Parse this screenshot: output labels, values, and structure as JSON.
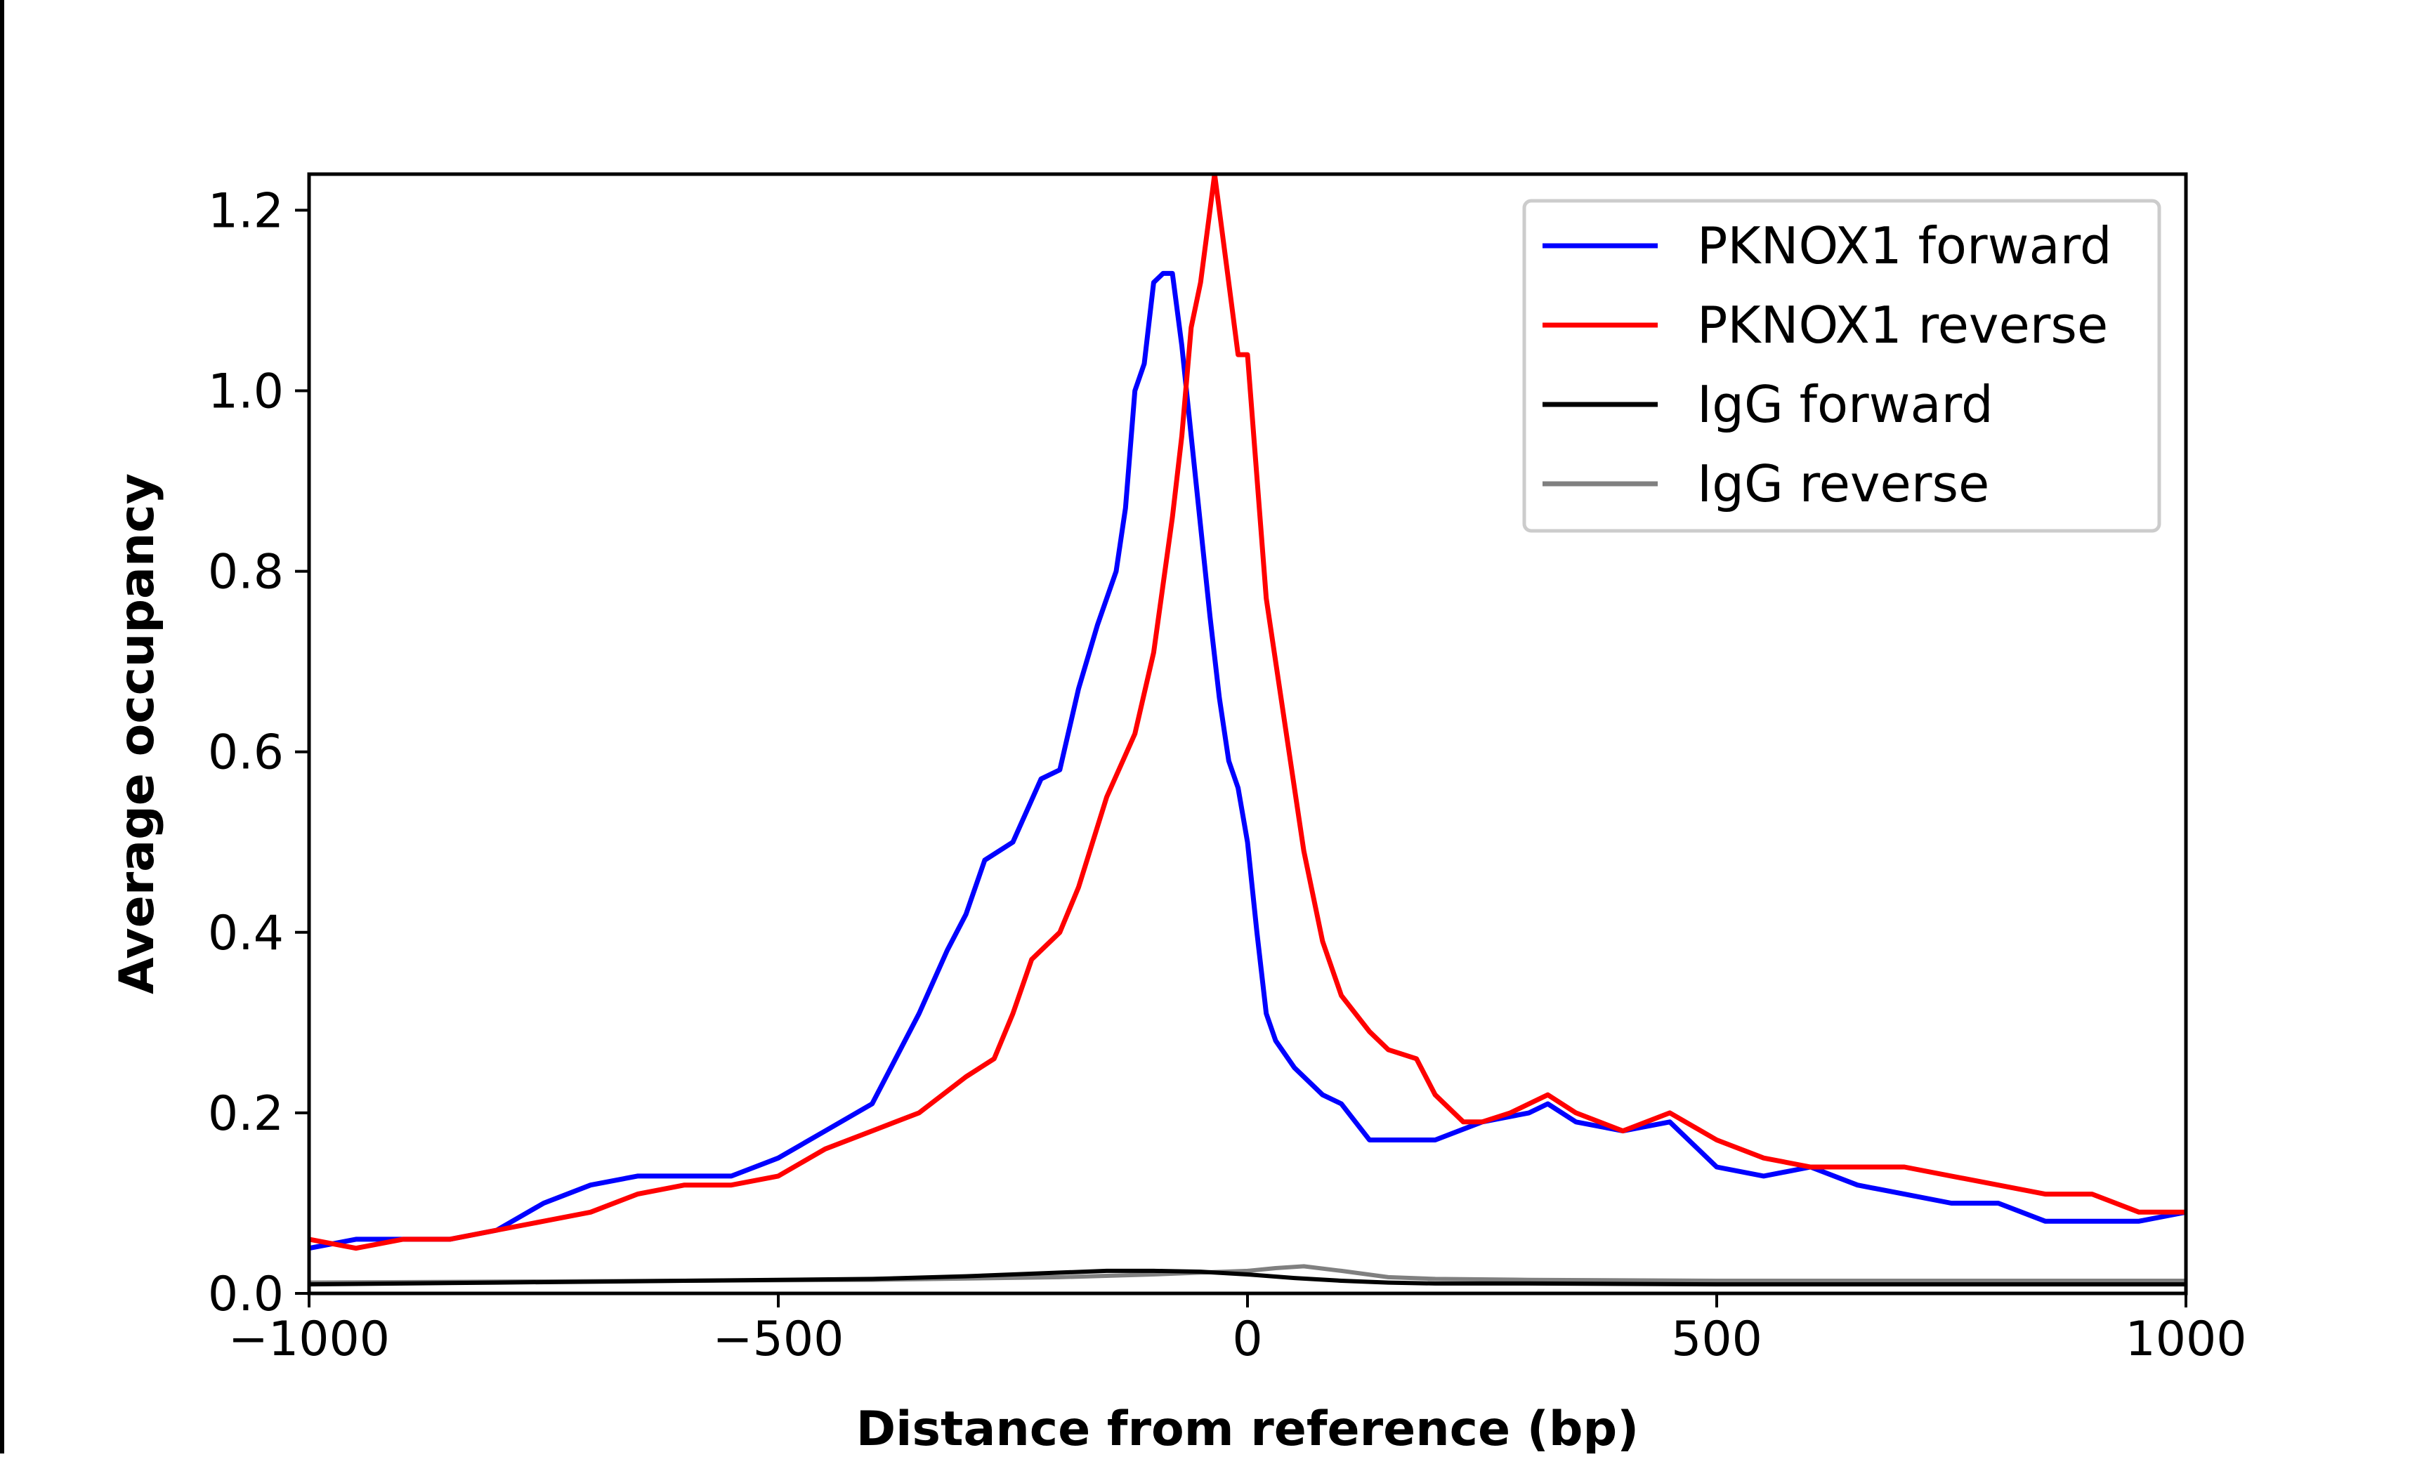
{
  "chart_data": {
    "type": "line",
    "title": "",
    "xlabel": "Distance from reference (bp)",
    "ylabel": "Average occupancy",
    "xlim": [
      -1000,
      1000
    ],
    "ylim": [
      0,
      1.24
    ],
    "xticks": [
      -1000,
      -500,
      0,
      500,
      1000
    ],
    "xtick_labels": [
      "−1000",
      "−500",
      "0",
      "500",
      "1000"
    ],
    "yticks": [
      0.0,
      0.2,
      0.4,
      0.6,
      0.8,
      1.0,
      1.2
    ],
    "ytick_labels": [
      "0.0",
      "0.2",
      "0.4",
      "0.6",
      "0.8",
      "1.0",
      "1.2"
    ],
    "grid": false,
    "legend_position": "top-right",
    "series": [
      {
        "name": "PKNOX1 forward",
        "color": "#0000ff",
        "x": [
          -1000,
          -950,
          -900,
          -850,
          -800,
          -750,
          -700,
          -650,
          -600,
          -550,
          -500,
          -450,
          -400,
          -370,
          -350,
          -320,
          -300,
          -280,
          -250,
          -220,
          -200,
          -180,
          -160,
          -140,
          -130,
          -120,
          -110,
          -100,
          -90,
          -80,
          -70,
          -60,
          -50,
          -40,
          -30,
          -20,
          -10,
          0,
          10,
          20,
          30,
          50,
          80,
          100,
          130,
          150,
          200,
          250,
          300,
          320,
          350,
          400,
          450,
          500,
          550,
          600,
          650,
          700,
          750,
          800,
          850,
          900,
          950,
          1000
        ],
        "y": [
          0.05,
          0.06,
          0.06,
          0.06,
          0.07,
          0.1,
          0.12,
          0.13,
          0.13,
          0.13,
          0.15,
          0.18,
          0.21,
          0.27,
          0.31,
          0.38,
          0.42,
          0.48,
          0.5,
          0.57,
          0.58,
          0.67,
          0.74,
          0.8,
          0.87,
          1.0,
          1.03,
          1.12,
          1.13,
          1.13,
          1.05,
          0.95,
          0.85,
          0.75,
          0.66,
          0.59,
          0.56,
          0.5,
          0.4,
          0.31,
          0.28,
          0.25,
          0.22,
          0.21,
          0.17,
          0.17,
          0.17,
          0.19,
          0.2,
          0.21,
          0.19,
          0.18,
          0.19,
          0.14,
          0.13,
          0.14,
          0.12,
          0.11,
          0.1,
          0.1,
          0.08,
          0.08,
          0.08,
          0.09
        ]
      },
      {
        "name": "PKNOX1 reverse",
        "color": "#ff0000",
        "x": [
          -1000,
          -950,
          -900,
          -850,
          -800,
          -750,
          -700,
          -650,
          -600,
          -550,
          -500,
          -450,
          -400,
          -350,
          -300,
          -270,
          -250,
          -230,
          -200,
          -180,
          -150,
          -120,
          -100,
          -80,
          -70,
          -60,
          -50,
          -40,
          -35,
          -30,
          -20,
          -10,
          0,
          20,
          40,
          60,
          80,
          100,
          130,
          150,
          180,
          200,
          230,
          250,
          280,
          300,
          320,
          350,
          400,
          450,
          500,
          550,
          600,
          650,
          700,
          750,
          800,
          850,
          900,
          950,
          1000
        ],
        "y": [
          0.06,
          0.05,
          0.06,
          0.06,
          0.07,
          0.08,
          0.09,
          0.11,
          0.12,
          0.12,
          0.13,
          0.16,
          0.18,
          0.2,
          0.24,
          0.26,
          0.31,
          0.37,
          0.4,
          0.45,
          0.55,
          0.62,
          0.71,
          0.86,
          0.95,
          1.07,
          1.12,
          1.2,
          1.24,
          1.2,
          1.12,
          1.04,
          1.04,
          0.77,
          0.63,
          0.49,
          0.39,
          0.33,
          0.29,
          0.27,
          0.26,
          0.22,
          0.19,
          0.19,
          0.2,
          0.21,
          0.22,
          0.2,
          0.18,
          0.2,
          0.17,
          0.15,
          0.14,
          0.14,
          0.14,
          0.13,
          0.12,
          0.11,
          0.11,
          0.09,
          0.09
        ]
      },
      {
        "name": "IgG forward",
        "color": "#000000",
        "x": [
          -1000,
          -800,
          -600,
          -400,
          -300,
          -200,
          -150,
          -100,
          -50,
          0,
          50,
          100,
          150,
          200,
          300,
          500,
          800,
          1000
        ],
        "y": [
          0.01,
          0.012,
          0.014,
          0.016,
          0.019,
          0.023,
          0.025,
          0.025,
          0.024,
          0.021,
          0.017,
          0.014,
          0.012,
          0.011,
          0.011,
          0.01,
          0.01,
          0.01
        ]
      },
      {
        "name": "IgG reverse",
        "color": "#808080",
        "x": [
          -1000,
          -800,
          -600,
          -400,
          -200,
          -100,
          -50,
          0,
          30,
          60,
          100,
          150,
          200,
          300,
          500,
          800,
          1000
        ],
        "y": [
          0.012,
          0.013,
          0.014,
          0.015,
          0.018,
          0.021,
          0.023,
          0.025,
          0.028,
          0.03,
          0.025,
          0.018,
          0.016,
          0.015,
          0.014,
          0.014,
          0.014
        ]
      }
    ]
  }
}
